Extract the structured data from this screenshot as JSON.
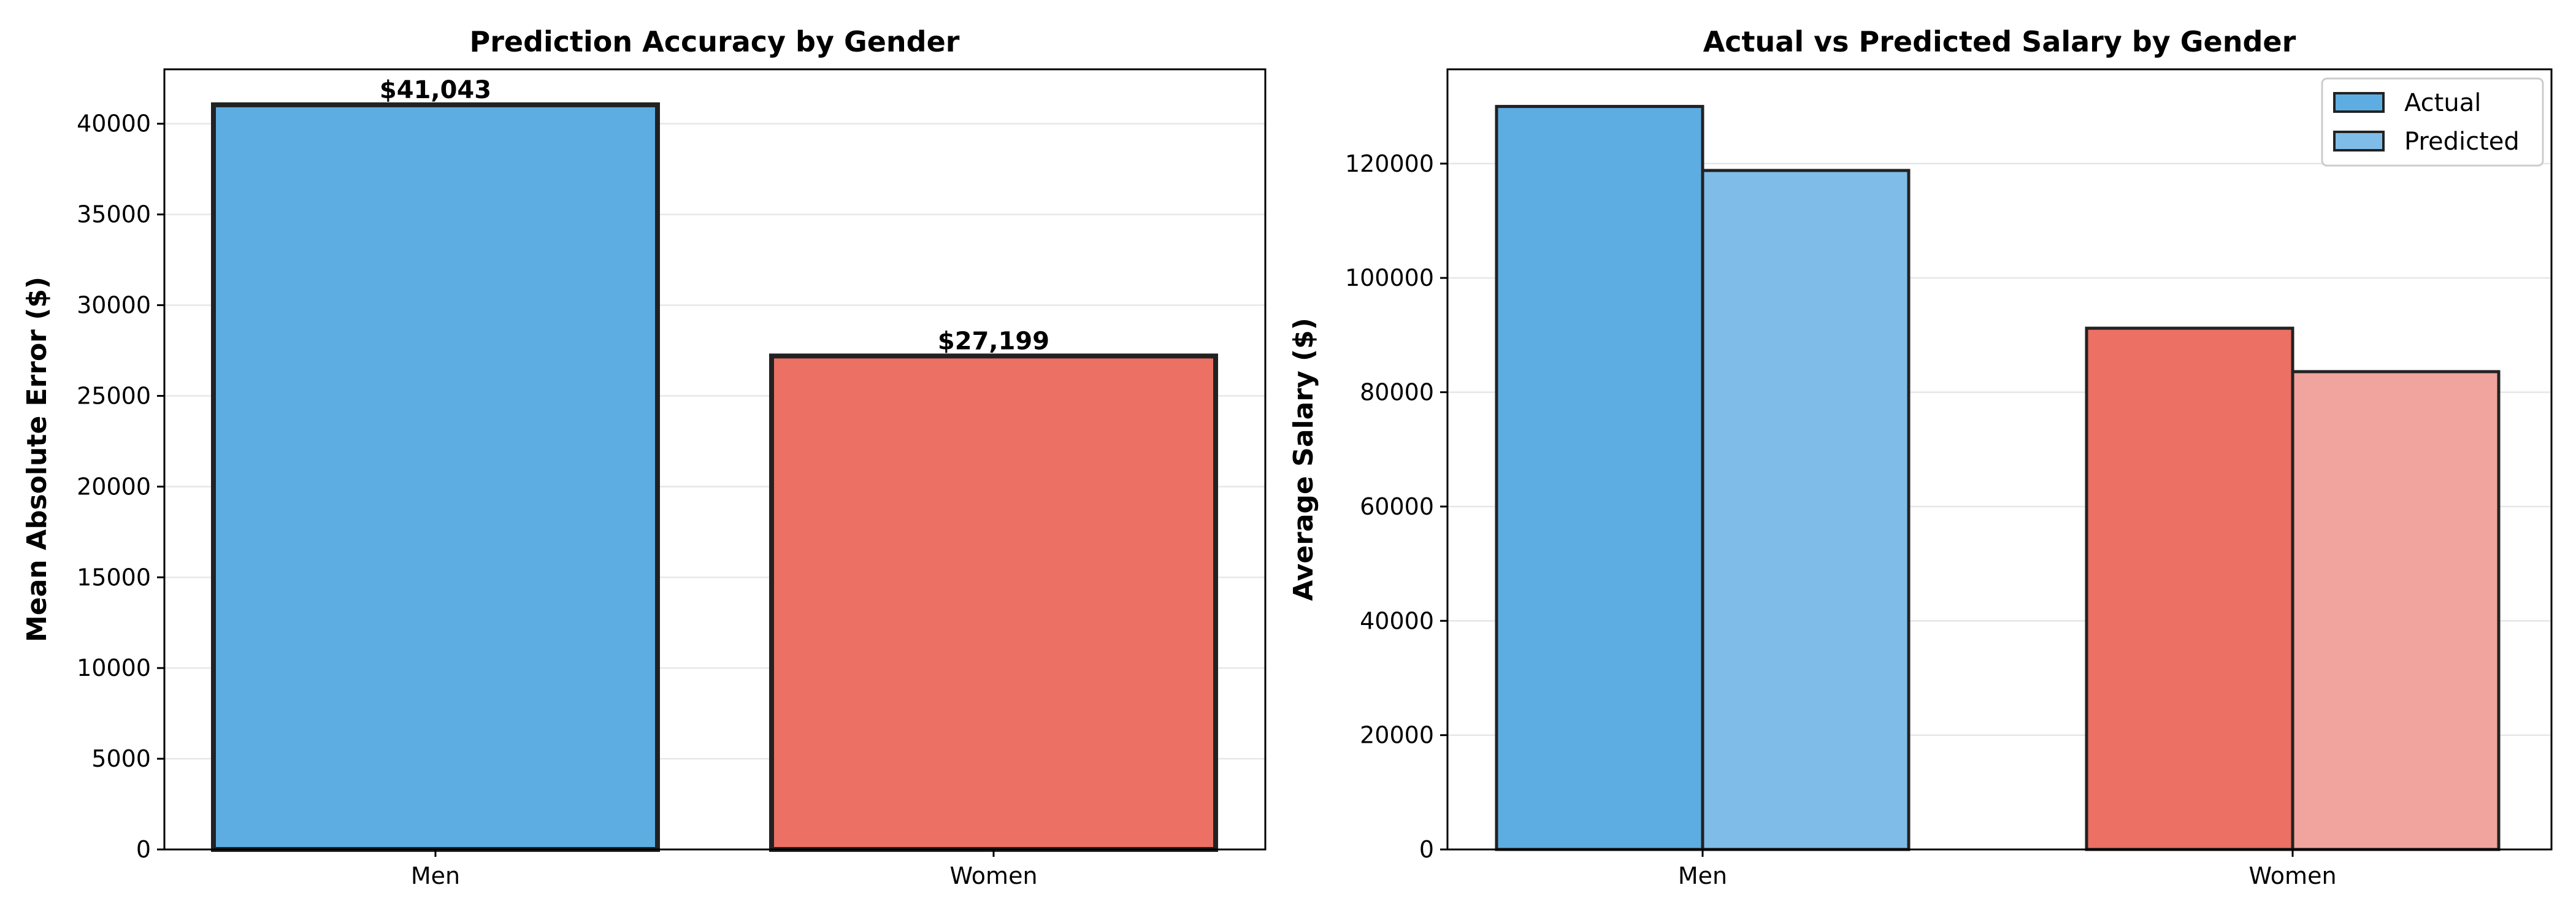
{
  "chart_data": [
    {
      "type": "bar",
      "title": "Prediction Accuracy by Gender",
      "xlabel": "",
      "ylabel": "Mean Absolute Error ($)",
      "categories": [
        "Men",
        "Women"
      ],
      "values": [
        41043,
        27199
      ],
      "value_labels": [
        "$41,043",
        "$27,199"
      ],
      "bar_colors": [
        "#5dade2",
        "#ec7063"
      ],
      "ylim": [
        0,
        43000
      ],
      "yticks": [
        0,
        5000,
        10000,
        15000,
        20000,
        25000,
        30000,
        35000,
        40000
      ],
      "ytick_labels": [
        "0",
        "5000",
        "10000",
        "15000",
        "20000",
        "25000",
        "30000",
        "35000",
        "40000"
      ],
      "grid": true
    },
    {
      "type": "bar",
      "title": "Actual vs Predicted Salary by Gender",
      "xlabel": "",
      "ylabel": "Average Salary ($)",
      "categories": [
        "Men",
        "Women"
      ],
      "series": [
        {
          "name": "Actual",
          "values": [
            130000,
            91200
          ],
          "colors": [
            "#5dade2",
            "#ec7063"
          ]
        },
        {
          "name": "Predicted",
          "values": [
            118800,
            83600
          ],
          "colors": [
            "#7fbde8",
            "#f1a49d"
          ]
        }
      ],
      "ylim": [
        0,
        136500
      ],
      "yticks": [
        0,
        20000,
        40000,
        60000,
        80000,
        100000,
        120000
      ],
      "ytick_labels": [
        "0",
        "20000",
        "40000",
        "60000",
        "80000",
        "100000",
        "120000"
      ],
      "legend": {
        "position": "top-right",
        "colors": [
          "#5dade2",
          "#7fbde8"
        ]
      },
      "grid": true
    }
  ]
}
